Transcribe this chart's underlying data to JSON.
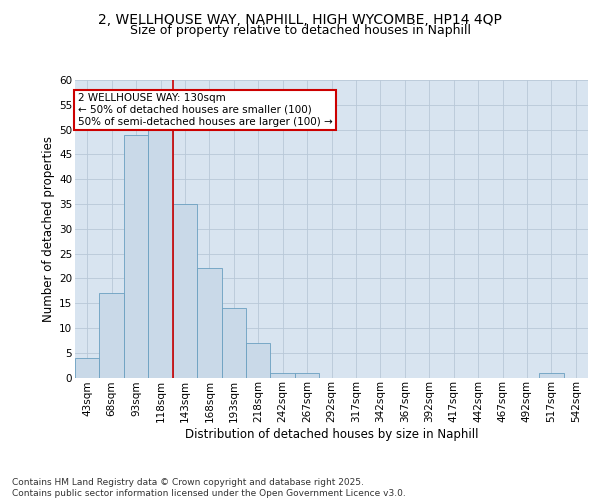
{
  "title_line1": "2, WELLHOUSE WAY, NAPHILL, HIGH WYCOMBE, HP14 4QP",
  "title_line2": "Size of property relative to detached houses in Naphill",
  "xlabel": "Distribution of detached houses by size in Naphill",
  "ylabel": "Number of detached properties",
  "categories": [
    "43sqm",
    "68sqm",
    "93sqm",
    "118sqm",
    "143sqm",
    "168sqm",
    "193sqm",
    "218sqm",
    "242sqm",
    "267sqm",
    "292sqm",
    "317sqm",
    "342sqm",
    "367sqm",
    "392sqm",
    "417sqm",
    "442sqm",
    "467sqm",
    "492sqm",
    "517sqm",
    "542sqm"
  ],
  "values": [
    4,
    17,
    49,
    50,
    35,
    22,
    14,
    7,
    1,
    1,
    0,
    0,
    0,
    0,
    0,
    0,
    0,
    0,
    0,
    1,
    0
  ],
  "bar_color": "#c9d9e8",
  "bar_edge_color": "#6a9fc0",
  "vline_x": 3.5,
  "vline_color": "#cc0000",
  "annotation_text": "2 WELLHOUSE WAY: 130sqm\n← 50% of detached houses are smaller (100)\n50% of semi-detached houses are larger (100) →",
  "annotation_box_facecolor": "#ffffff",
  "annotation_box_edgecolor": "#cc0000",
  "ylim": [
    0,
    60
  ],
  "yticks": [
    0,
    5,
    10,
    15,
    20,
    25,
    30,
    35,
    40,
    45,
    50,
    55,
    60
  ],
  "grid_color": "#b8c8d8",
  "plot_bg_color": "#d8e4f0",
  "footer": "Contains HM Land Registry data © Crown copyright and database right 2025.\nContains public sector information licensed under the Open Government Licence v3.0.",
  "title_fontsize": 10,
  "subtitle_fontsize": 9,
  "tick_fontsize": 7.5,
  "label_fontsize": 8.5,
  "footer_fontsize": 6.5,
  "annot_fontsize": 7.5
}
